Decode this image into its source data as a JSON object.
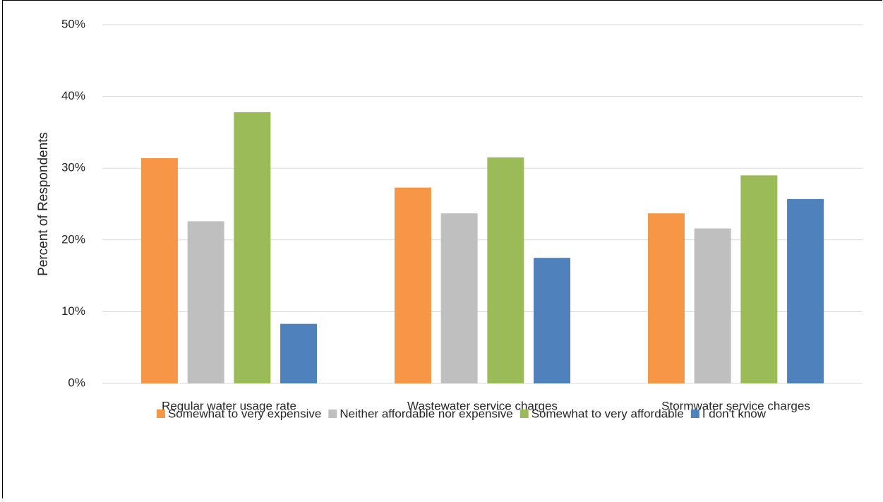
{
  "chart_data": {
    "type": "bar",
    "y_label": "Percent of Respondents",
    "categories": [
      "Regular water usage rate",
      "Wastewater service charges",
      "Stormwater service charges"
    ],
    "series": [
      {
        "name": "Somewhat to very expensive",
        "color": "#f79646",
        "values": [
          31.4,
          27.3,
          23.7
        ]
      },
      {
        "name": "Neither affordable nor expensive",
        "color": "#bfbfbf",
        "values": [
          22.6,
          23.7,
          21.6
        ]
      },
      {
        "name": "Somewhat to very affordable",
        "color": "#9bbb59",
        "values": [
          37.8,
          31.5,
          29.0
        ]
      },
      {
        "name": "I don't know",
        "color": "#4f81bd",
        "values": [
          8.3,
          17.5,
          25.7
        ]
      }
    ],
    "ylim": [
      0,
      50
    ],
    "yticks": [
      {
        "value": 0,
        "label": "0%"
      },
      {
        "value": 10,
        "label": "10%"
      },
      {
        "value": 20,
        "label": "20%"
      },
      {
        "value": 30,
        "label": "30%"
      },
      {
        "value": 40,
        "label": "40%"
      },
      {
        "value": 50,
        "label": "50%"
      }
    ],
    "grid": true,
    "legend": "bottom"
  }
}
